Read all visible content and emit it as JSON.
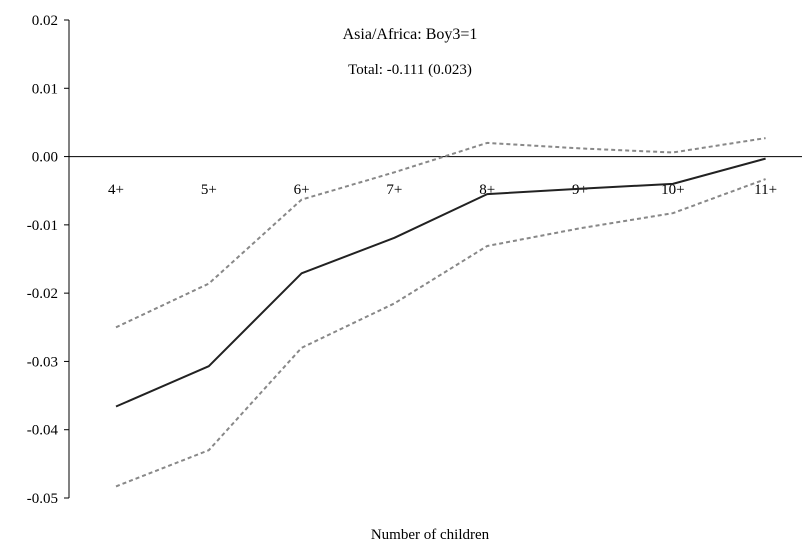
{
  "chart_data": {
    "type": "line",
    "title": "Asia/Africa: Boy3=1",
    "subtitle": "Total: -0.111 (0.023)",
    "xlabel": "Number of children",
    "ylabel": "",
    "categories": [
      "4+",
      "5+",
      "6+",
      "7+",
      "8+",
      "9+",
      "10+",
      "11+"
    ],
    "ylim": [
      -0.05,
      0.02
    ],
    "yticks": [
      0.02,
      0.01,
      0.0,
      -0.01,
      -0.02,
      -0.03,
      -0.04,
      -0.05
    ],
    "ytick_labels": [
      "0.02",
      "0.01",
      "0.00",
      "-0.01",
      "-0.02",
      "-0.03",
      "-0.04",
      "-0.05"
    ],
    "grid": false,
    "legend": "none",
    "series": [
      {
        "values": [
          -0.0366,
          -0.0307,
          -0.0171,
          -0.0119,
          -0.0055,
          -0.0047,
          -0.004,
          -0.0003
        ],
        "color": "#222222",
        "style": "solid"
      },
      {
        "values": [
          -0.025,
          -0.0186,
          -0.0063,
          -0.0023,
          0.002,
          0.0012,
          0.0006,
          0.0027
        ],
        "color": "#888888",
        "style": "dotted"
      },
      {
        "values": [
          -0.0483,
          -0.043,
          -0.028,
          -0.0215,
          -0.0131,
          -0.0105,
          -0.0083,
          -0.0033
        ],
        "color": "#888888",
        "style": "dotted"
      }
    ]
  }
}
